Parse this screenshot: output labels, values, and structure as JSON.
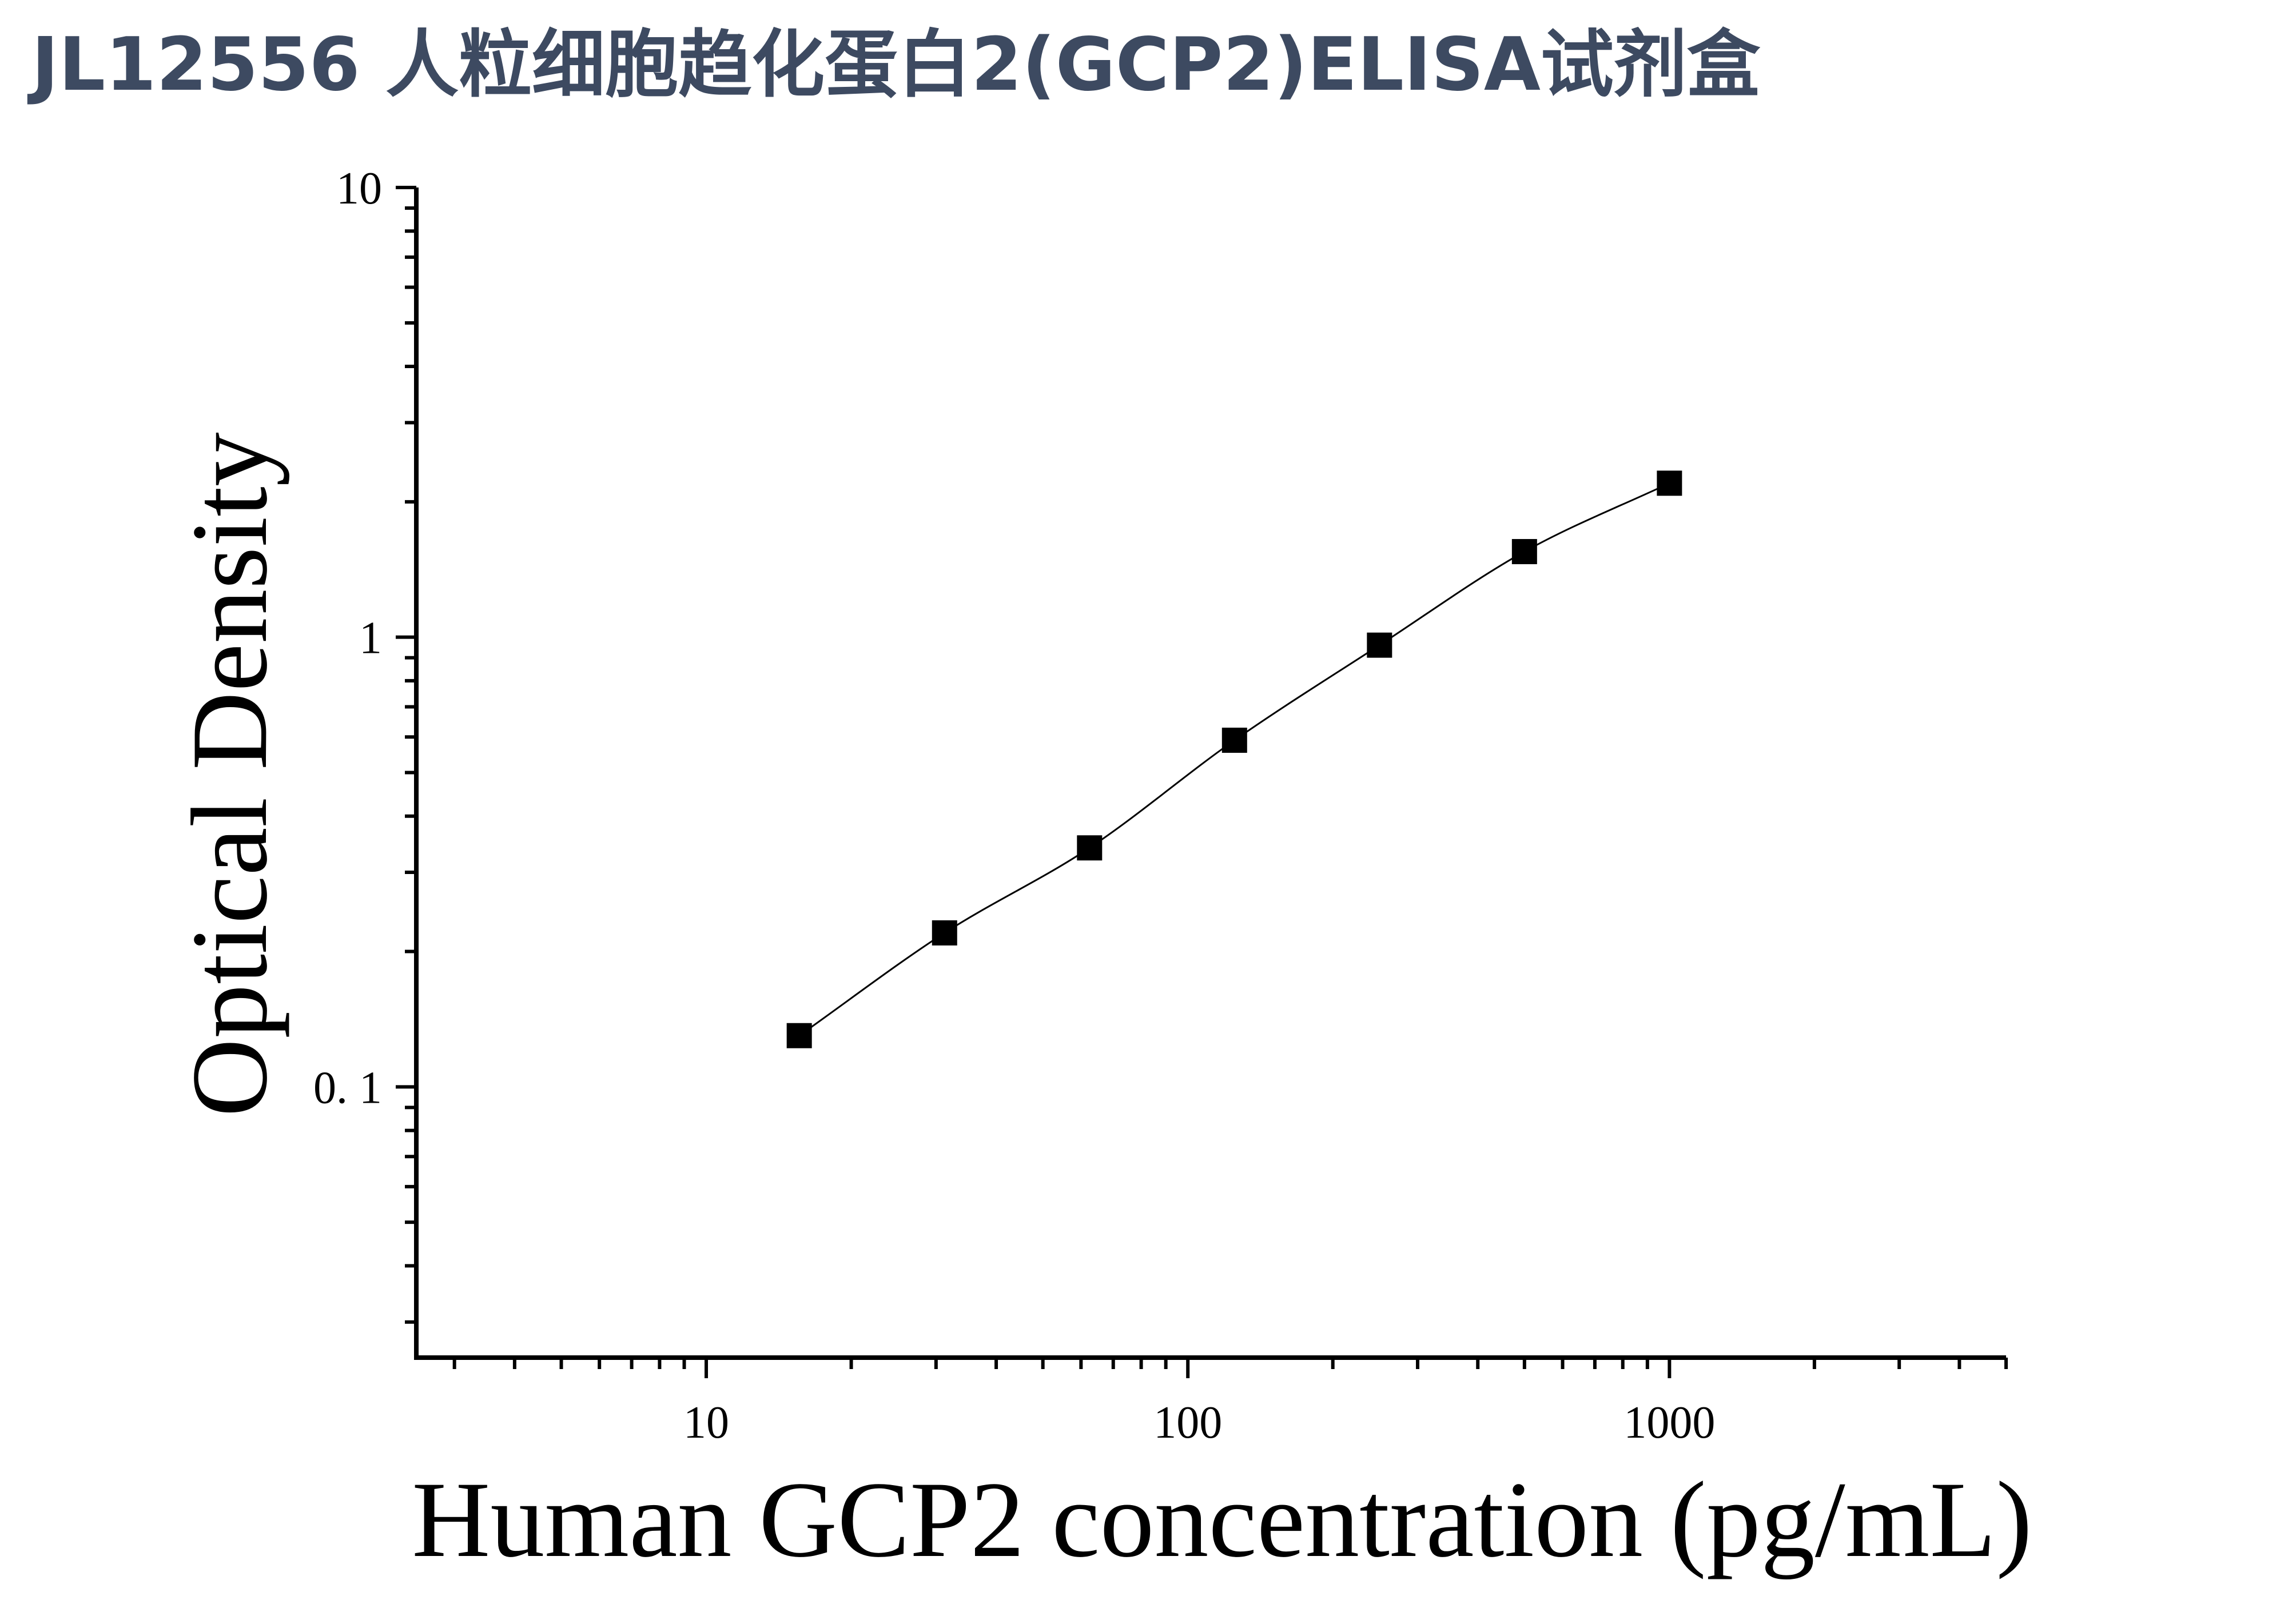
{
  "title": "JL12556 人粒细胞趋化蛋白2(GCP2)ELISA试剂盒",
  "chart_data": {
    "type": "scatter",
    "xlabel": "Human GCP2 concentration (pg/mL)",
    "ylabel": "Optical Density",
    "x_scale": "log",
    "y_scale": "log",
    "xlim": [
      2.5,
      5000
    ],
    "ylim": [
      0.025,
      10
    ],
    "x_ticks": [
      10,
      100,
      1000
    ],
    "x_tick_labels": [
      "10",
      "100",
      "1000"
    ],
    "y_ticks": [
      0.1,
      1,
      10
    ],
    "y_tick_labels": [
      "0. 1",
      "1",
      "10"
    ],
    "grid": false,
    "legend": "none",
    "marker": "square",
    "marker_color": "#000000",
    "curve": "fitted smooth line through points",
    "series": [
      {
        "x": [
          15.6,
          31.25,
          62.5,
          125,
          250,
          500,
          1000
        ],
        "y": [
          0.13,
          0.22,
          0.34,
          0.59,
          0.96,
          1.55,
          2.2
        ]
      }
    ]
  }
}
